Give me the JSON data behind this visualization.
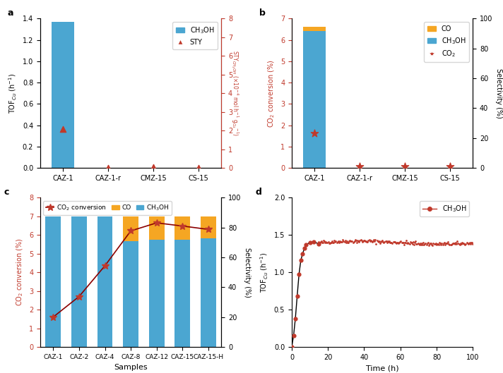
{
  "panel_a": {
    "categories": [
      "CAZ-1",
      "CAZ-1-r",
      "CMZ-15",
      "CS-15"
    ],
    "tof_cu": [
      1.37,
      0.0,
      0.0,
      0.0
    ],
    "sty": [
      2.1,
      0.02,
      0.03,
      0.02
    ],
    "ylim_left": [
      0,
      1.4
    ],
    "ylim_right": [
      0,
      8
    ],
    "ylabel_left": "TOF$_{Cu}$ (h$^{-1}$)",
    "ylabel_right": "STY$_{CH_3OH}$ (×10$^{-4}$ mol h$^{-1}$ g$_{Cu}$$^{-1}$)",
    "bar_color": "#4BA6D1",
    "marker_color": "#C0392B",
    "label": "a"
  },
  "panel_b": {
    "categories": [
      "CAZ-1",
      "CAZ-1-r",
      "CMZ-15",
      "CS-15"
    ],
    "co2_conversion": [
      6.7,
      0.04,
      0.06,
      0.04
    ],
    "ch3oh_sel": [
      96,
      0,
      0,
      0
    ],
    "co_sel": [
      3,
      0,
      0,
      0
    ],
    "co2_sel": [
      23,
      1,
      1,
      1
    ],
    "ylim_left": [
      0,
      7
    ],
    "ylim_right": [
      0,
      100
    ],
    "ylabel_left": "CO$_2$ conversion (%)",
    "ylabel_right": "Selectivity (%)",
    "bar_color_ch3oh": "#4BA6D1",
    "bar_color_co": "#F5A623",
    "marker_color": "#C0392B",
    "label": "b"
  },
  "panel_c": {
    "categories": [
      "CAZ-1",
      "CAZ-2",
      "CAZ-4",
      "CAZ-8",
      "CAZ-12",
      "CAZ-15",
      "CAZ-15-H"
    ],
    "co2_conversion": [
      1.6,
      2.7,
      4.35,
      6.22,
      6.65,
      6.48,
      6.3
    ],
    "ch3oh_sel": [
      100,
      100,
      100,
      81,
      82,
      82,
      83
    ],
    "co_sel": [
      0,
      0,
      0,
      19,
      18,
      18,
      17
    ],
    "ylim_left": [
      0,
      8
    ],
    "ylim_right": [
      0,
      100
    ],
    "ylabel_left": "CO$_2$ conversion (%)",
    "ylabel_right": "Selectivity (%)",
    "bar_color_ch3oh": "#4BA6D1",
    "bar_color_co": "#F5A623",
    "line_color": "#8B0000",
    "marker_color": "#C0392B",
    "xlabel": "Samples",
    "label": "c"
  },
  "panel_d": {
    "time_dense_start": 15,
    "time_sparse": [
      0,
      1,
      2,
      3,
      4,
      5,
      6,
      7,
      8,
      10,
      12,
      15
    ],
    "tof_sparse": [
      0.0,
      0.15,
      0.38,
      0.68,
      0.97,
      1.16,
      1.25,
      1.32,
      1.37,
      1.4,
      1.41,
      1.38
    ],
    "ylim": [
      0,
      2.0
    ],
    "xlim": [
      0,
      100
    ],
    "ylabel": "TOF$_{Cu}$ (h$^{-1}$)",
    "xlabel": "Time (h)",
    "line_color": "#C0392B",
    "marker_color": "#C0392B",
    "label": "d"
  },
  "figure_bg": "#FFFFFF"
}
